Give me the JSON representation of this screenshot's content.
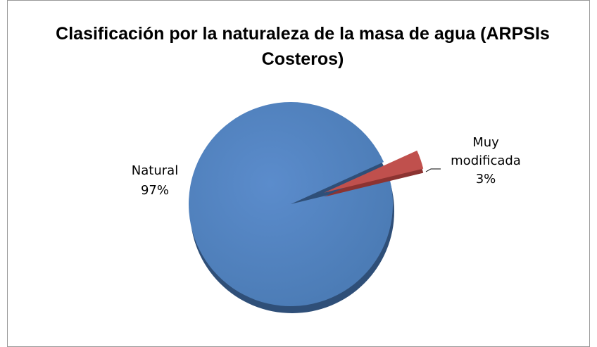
{
  "chart_data": {
    "type": "pie",
    "title": "Clasificación por  la naturaleza  de la masa de agua (ARPSIs Costeros)",
    "categories": [
      "Natural",
      "Muy modificada"
    ],
    "values": [
      97,
      3
    ],
    "value_labels": [
      "97%",
      "3%"
    ],
    "colors": [
      "#4f81bd",
      "#c0504d"
    ]
  }
}
